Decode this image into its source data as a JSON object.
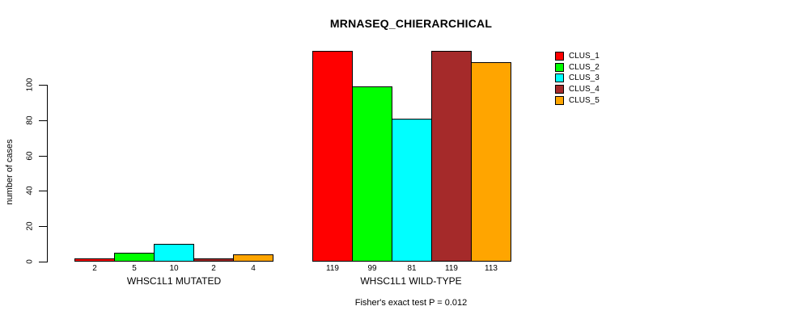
{
  "chart_data": {
    "type": "bar",
    "title": "MRNASEQ_CHIERARCHICAL",
    "ylabel": "number of cases",
    "xlabel": "",
    "ylim": [
      0,
      100
    ],
    "yticks": [
      0,
      20,
      40,
      60,
      80,
      100
    ],
    "grid": false,
    "legend_position": "top-right",
    "legend": [
      {
        "label": "CLUS_1",
        "color": "#FF0000"
      },
      {
        "label": "CLUS_2",
        "color": "#00FF00"
      },
      {
        "label": "CLUS_3",
        "color": "#00FFFF"
      },
      {
        "label": "CLUS_4",
        "color": "#A52A2A"
      },
      {
        "label": "CLUS_5",
        "color": "#FFA500"
      }
    ],
    "groups": [
      {
        "label": "WHSC1L1 MUTATED",
        "values": [
          2,
          5,
          10,
          2,
          4
        ]
      },
      {
        "label": "WHSC1L1 WILD-TYPE",
        "values": [
          119,
          99,
          81,
          119,
          113
        ]
      }
    ],
    "footnote": "Fisher's exact test P = 0.012"
  }
}
